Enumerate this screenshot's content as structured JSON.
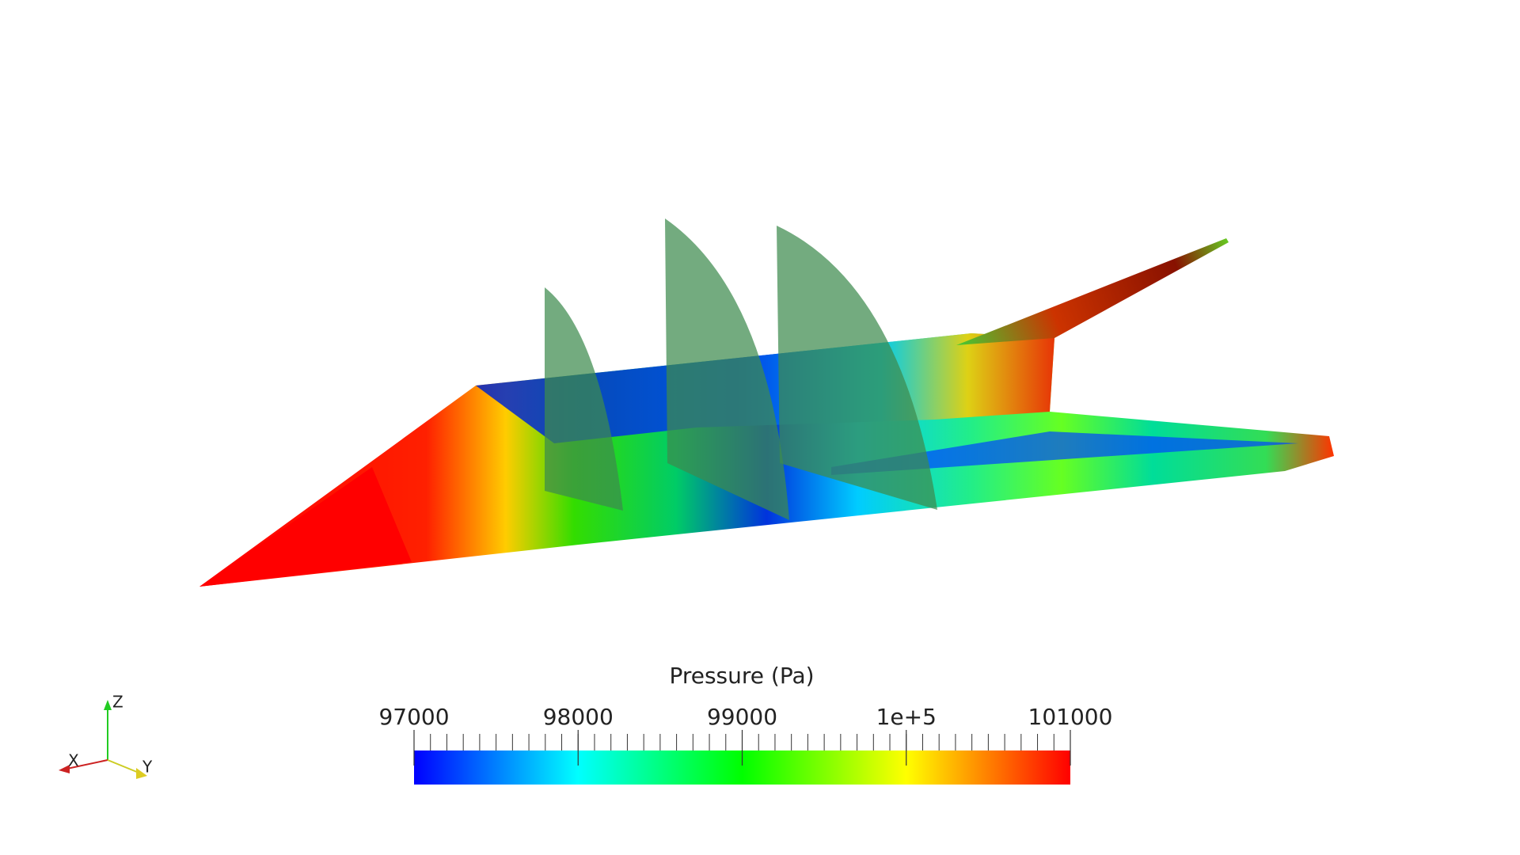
{
  "colorbar": {
    "title": "Pressure (Pa)",
    "range": [
      97000,
      101000
    ],
    "ticks": [
      97000,
      98000,
      99000,
      {
        "value": 100000,
        "label": "1e+5"
      },
      101000
    ],
    "colors": [
      "#0000ff",
      "#00ffff",
      "#00ff00",
      "#ffff00",
      "#ff0000"
    ]
  },
  "axes_triad": {
    "x": "X",
    "y": "Y",
    "z": "Z"
  }
}
